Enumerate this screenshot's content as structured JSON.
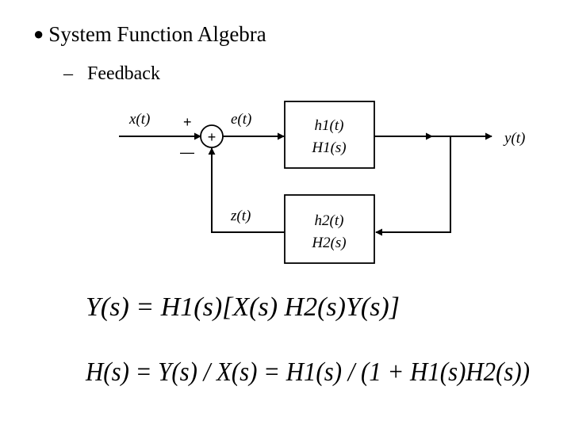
{
  "slide": {
    "bullet_symbol": "●",
    "title": "System Function Algebra",
    "sub_dash": "–",
    "subtitle": "Feedback"
  },
  "diagram": {
    "input_label": "x(t)",
    "error_label": "e(t)",
    "output_label": "y(t)",
    "feedback_label": "z(t)",
    "summer_symbol": "+",
    "plus_sign": "+",
    "minus_sign": "—",
    "forward_block": {
      "line1": "h1(t)",
      "line2": "H1(s)"
    },
    "feedback_block": {
      "line1": "h2(t)",
      "line2": "H2(s)"
    }
  },
  "equations": {
    "eq1": "Y(s) = H1(s)[X(s)   H2(s)Y(s)]",
    "eq2": "H(s) = Y(s) / X(s) = H1(s) / (1 + H1(s)H2(s))"
  }
}
